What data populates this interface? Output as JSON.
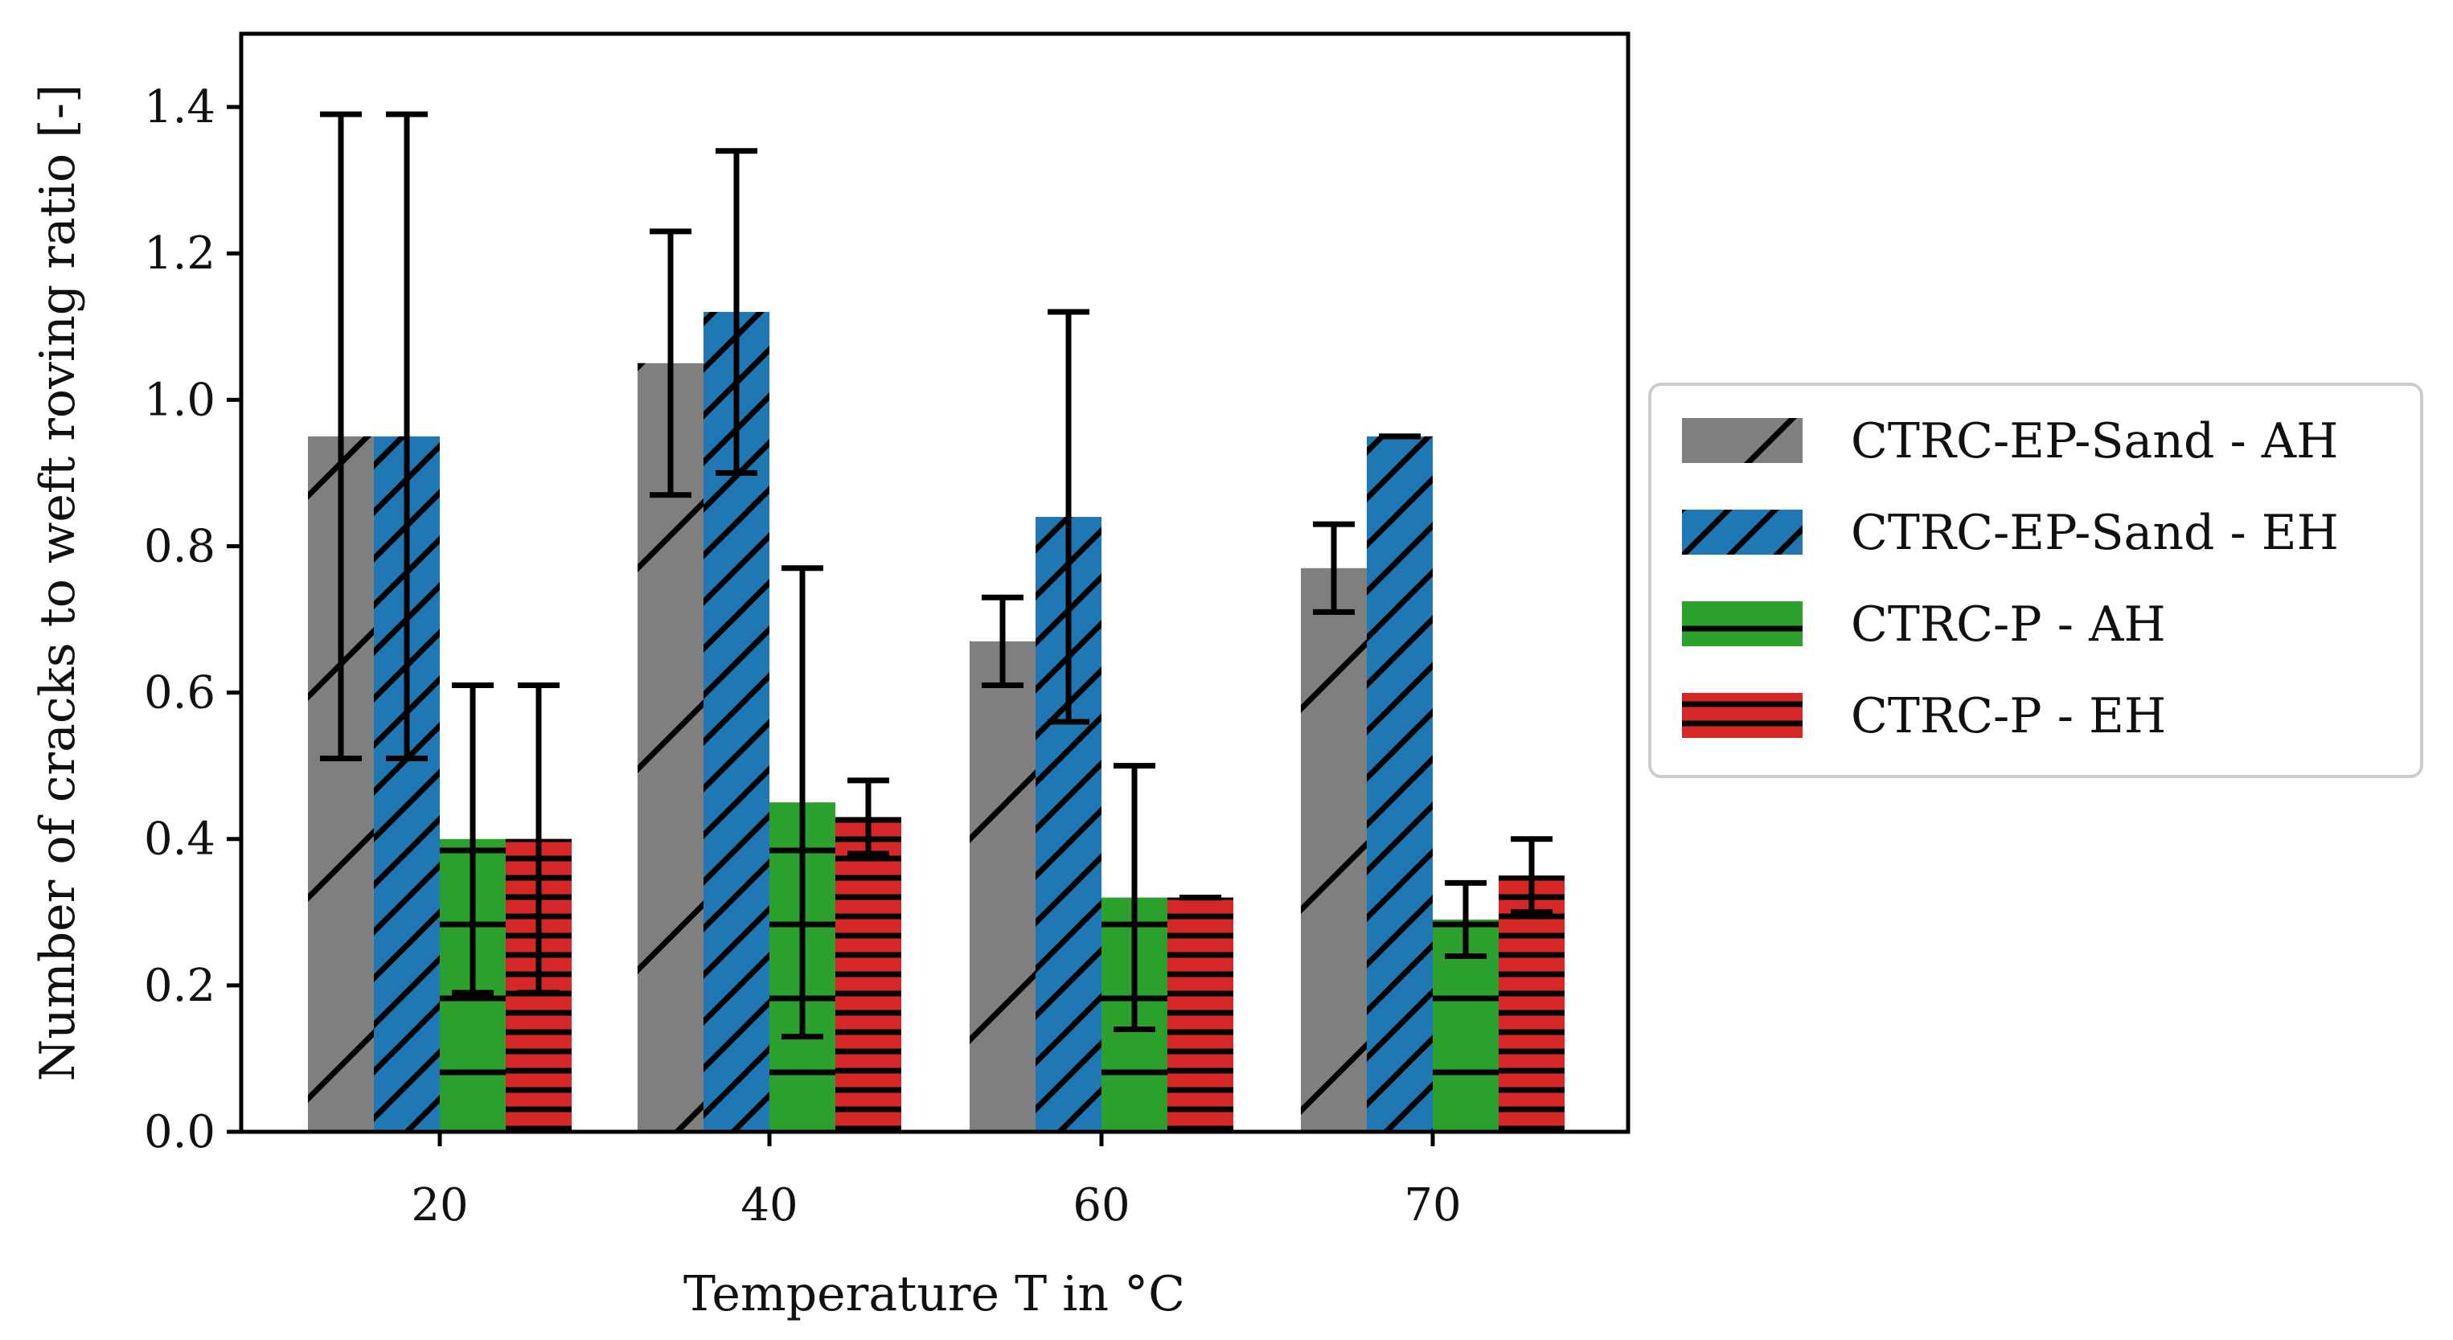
{
  "chart_data": {
    "type": "bar",
    "title": "",
    "xlabel": "Temperature T in °C",
    "ylabel": "Number of cracks to weft roving ratio [-]",
    "categories": [
      "20",
      "40",
      "60",
      "70"
    ],
    "ylim": [
      0,
      1.5
    ],
    "yticks": [
      0.0,
      0.2,
      0.4,
      0.6,
      0.8,
      1.0,
      1.2,
      1.4
    ],
    "ytick_labels": [
      "0.0",
      "0.2",
      "0.4",
      "0.6",
      "0.8",
      "1.0",
      "1.2",
      "1.4"
    ],
    "grid": false,
    "legend_position": "outside-right",
    "series": [
      {
        "name": "CTRC-EP-Sand - AH",
        "color": "#7f7f7f",
        "hatch": "sparse-diagonal",
        "values": [
          0.95,
          1.05,
          0.67,
          0.77
        ],
        "err_low": [
          0.51,
          0.87,
          0.61,
          0.71
        ],
        "err_high": [
          1.39,
          1.23,
          0.73,
          0.83
        ]
      },
      {
        "name": "CTRC-EP-Sand - EH",
        "color": "#1f77b4",
        "hatch": "dense-diagonal",
        "values": [
          0.95,
          1.12,
          0.84,
          0.95
        ],
        "err_low": [
          0.51,
          0.9,
          0.56,
          0.95
        ],
        "err_high": [
          1.39,
          1.34,
          1.12,
          0.95
        ]
      },
      {
        "name": "CTRC-P - AH",
        "color": "#2ca02c",
        "hatch": "sparse-horizontal",
        "values": [
          0.4,
          0.45,
          0.32,
          0.29
        ],
        "err_low": [
          0.19,
          0.13,
          0.14,
          0.24
        ],
        "err_high": [
          0.61,
          0.77,
          0.5,
          0.34
        ]
      },
      {
        "name": "CTRC-P - EH",
        "color": "#d62728",
        "hatch": "dense-horizontal",
        "values": [
          0.4,
          0.43,
          0.32,
          0.35
        ],
        "err_low": [
          0.19,
          0.38,
          0.32,
          0.3
        ],
        "err_high": [
          0.61,
          0.48,
          0.32,
          0.4
        ]
      }
    ]
  }
}
